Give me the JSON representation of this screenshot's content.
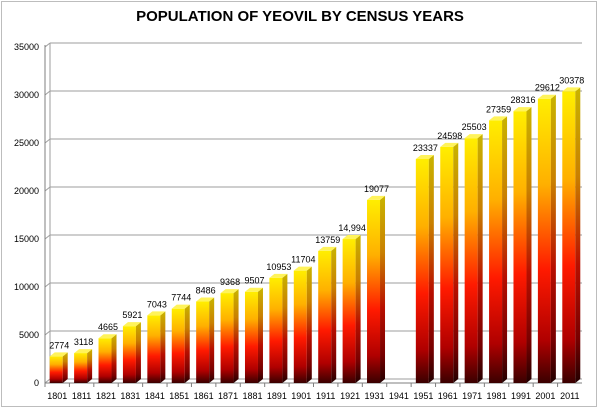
{
  "chart_data": {
    "type": "bar",
    "title": "POPULATION OF YEOVIL BY CENSUS YEARS",
    "xlabel": "",
    "ylabel": "",
    "ylim": [
      0,
      35000
    ],
    "yticks": [
      0,
      5000,
      10000,
      15000,
      20000,
      25000,
      30000,
      35000
    ],
    "grid": true,
    "legend": "none",
    "categories": [
      "1801",
      "1811",
      "1821",
      "1831",
      "1841",
      "1851",
      "1861",
      "1871",
      "1881",
      "1891",
      "1901",
      "1911",
      "1921",
      "1931",
      "1941",
      "1951",
      "1961",
      "1971",
      "1981",
      "1991",
      "2001",
      "2011"
    ],
    "values": [
      2774,
      3118,
      4665,
      5921,
      7043,
      7744,
      8486,
      9368,
      9507,
      10953,
      11704,
      13759,
      14994,
      19077,
      null,
      23337,
      24598,
      25503,
      27359,
      28316,
      29612,
      30378
    ],
    "data_labels": [
      "2774",
      "3118",
      "4665",
      "5921",
      "7043",
      "7744",
      "8486",
      "9368",
      "9507",
      "10953",
      "11704",
      "13759",
      "14,994",
      "19077",
      "",
      "23337",
      "24598",
      "25503",
      "27359",
      "28316",
      "29612",
      "30378"
    ],
    "colors": {
      "top": "#ffe800",
      "middle": "#ff0000",
      "bottom": "#3a0000"
    }
  }
}
